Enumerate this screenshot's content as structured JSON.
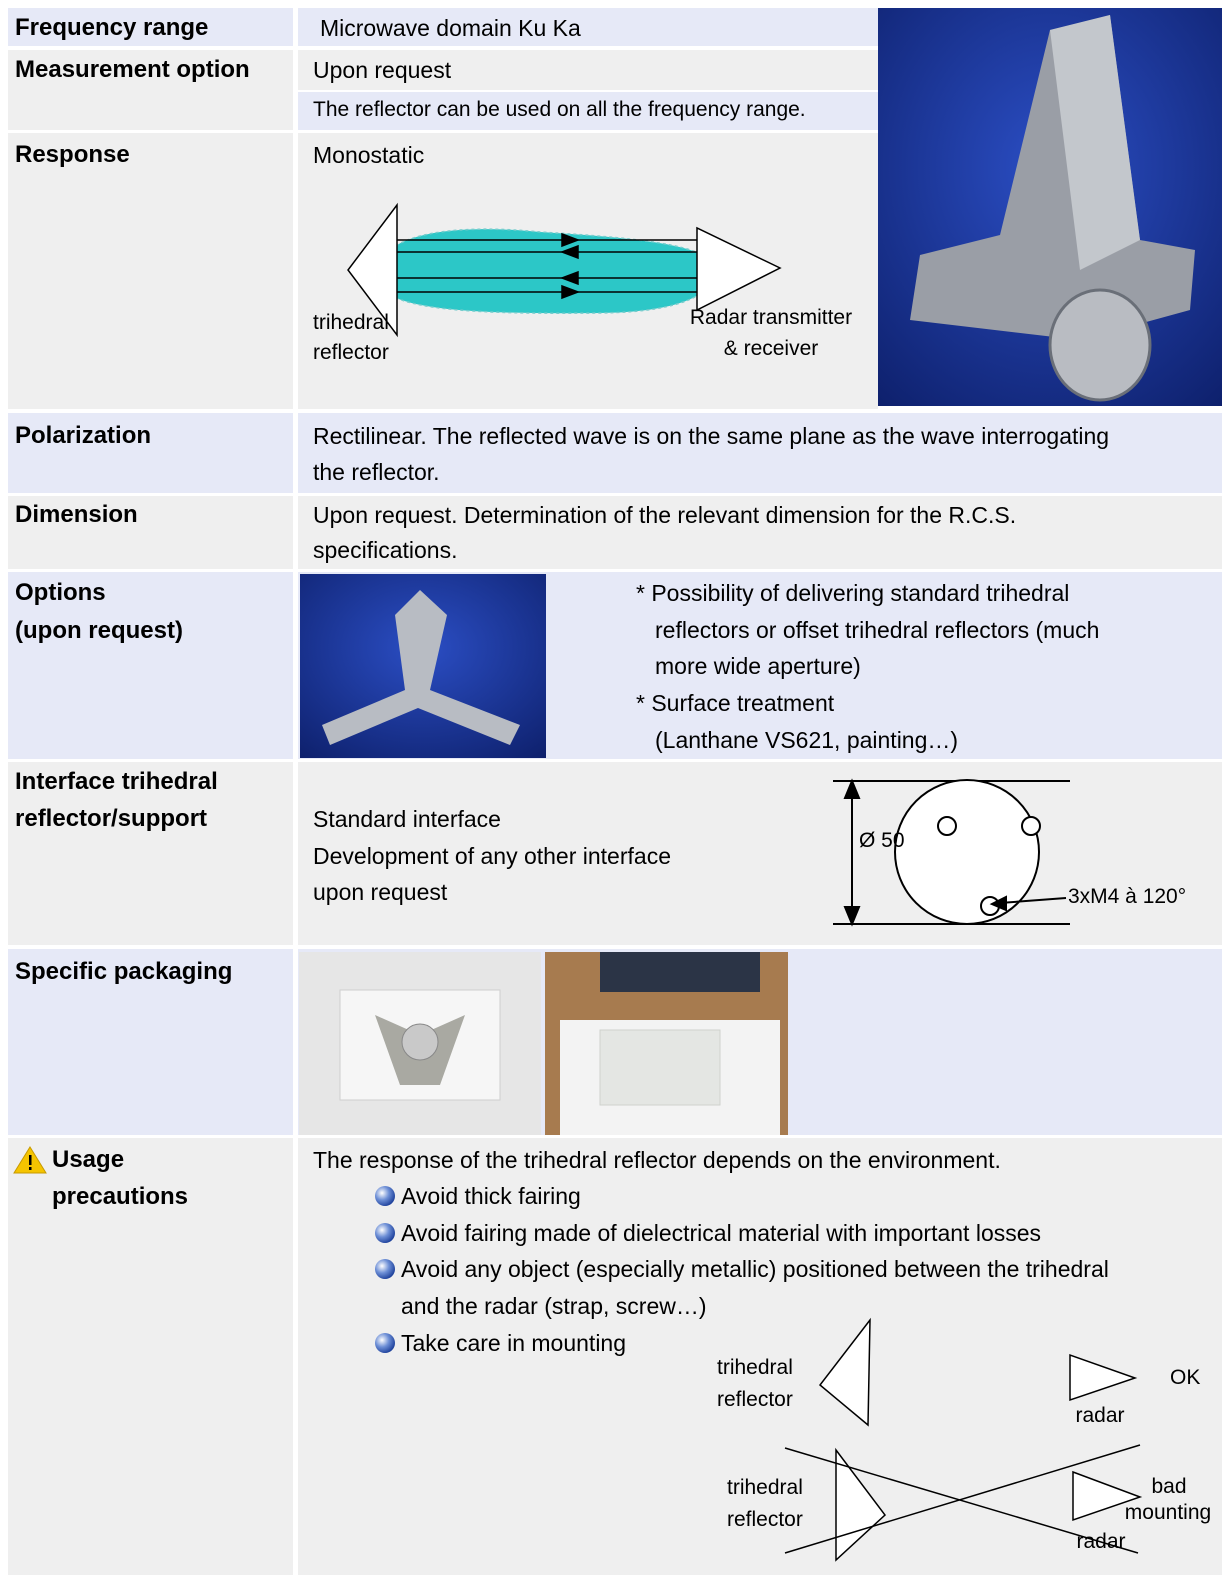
{
  "rows": [
    {
      "label": "Frequency range",
      "value": "Microwave domain Ku Ka"
    },
    {
      "label": "Measurement option",
      "value": "Upon request"
    },
    {
      "value": "The reflector can be used on all the frequency range."
    },
    {
      "label": "Response",
      "value": "Monostatic",
      "diagram": {
        "left": [
          "trihedral",
          "reflector"
        ],
        "right": [
          "Radar transmitter",
          "& receiver"
        ]
      }
    },
    {
      "label": "Polarization",
      "value": [
        "Rectilinear. The reflected wave is on the same plane as the wave interrogating",
        "the reflector."
      ]
    },
    {
      "label": "Dimension",
      "value": [
        "Upon request. Determination of the relevant dimension for the R.C.S.",
        "specifications."
      ]
    },
    {
      "label": [
        "Options",
        "(upon request)"
      ],
      "value": [
        "* Possibility of delivering standard trihedral",
        "reflectors or offset trihedral reflectors (much",
        "more wide aperture)",
        "* Surface treatment",
        "(Lanthane VS621, painting…)"
      ]
    },
    {
      "label": [
        "Interface trihedral",
        "reflector/support"
      ],
      "value": [
        "Standard interface",
        "Development of any other interface",
        "upon request"
      ],
      "diagram": {
        "diameter": "Ø 50",
        "holes": "3xM4 à 120°"
      }
    },
    {
      "label": "Specific packaging"
    },
    {
      "label": [
        "Usage",
        "precautions"
      ],
      "intro": "The response of the trihedral reflector depends on the environment.",
      "bullets": [
        [
          "Avoid thick fairing"
        ],
        [
          "Avoid fairing made of dielectrical material with important losses"
        ],
        [
          "Avoid any object (especially metallic) positioned between the trihedral",
          "and the radar (strap, screw…)"
        ],
        [
          "Take care in mounting"
        ]
      ],
      "diagram": {
        "ok": {
          "reflector": [
            "trihedral",
            "reflector"
          ],
          "radar": "radar",
          "verdict": "OK"
        },
        "bad": {
          "reflector": [
            "trihedral",
            "reflector"
          ],
          "radar": "radar",
          "verdict": [
            "bad",
            "mounting"
          ]
        }
      }
    }
  ]
}
